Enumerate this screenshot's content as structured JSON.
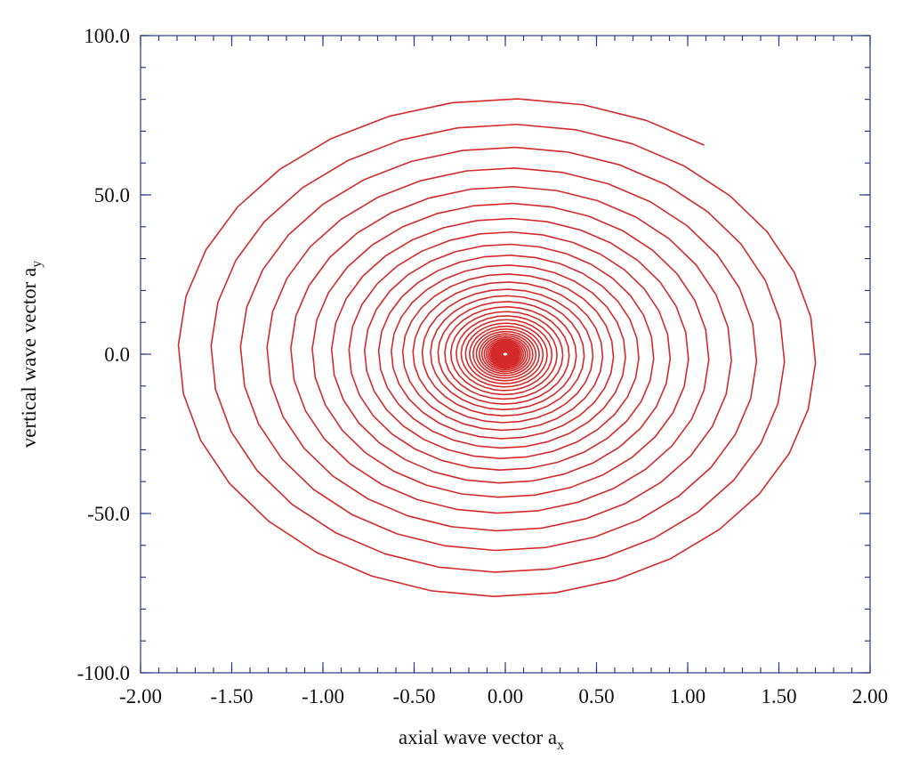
{
  "chart_data": {
    "type": "line",
    "title": "",
    "xlabel": "axial wave vector a",
    "xlabel_sub": "x",
    "ylabel": "vertical wave vector a",
    "ylabel_sub": "y",
    "xlim": [
      -2.0,
      2.0
    ],
    "ylim": [
      -100.0,
      100.0
    ],
    "x_ticks": [
      -2.0,
      -1.5,
      -1.0,
      -0.5,
      0.0,
      0.5,
      1.0,
      1.5,
      2.0
    ],
    "x_tick_labels": [
      "-2.00",
      "-1.50",
      "-1.00",
      "-0.50",
      "0.00",
      "0.50",
      "1.00",
      "1.50",
      "2.00"
    ],
    "x_minor_step": 0.1,
    "y_ticks": [
      -100.0,
      -50.0,
      0.0,
      50.0,
      100.0
    ],
    "y_tick_labels": [
      "-100.0",
      "-50.0",
      "0.0",
      "50.0",
      "100.0"
    ],
    "y_minor_step": 10.0,
    "grid": false,
    "series": [
      {
        "color": "#d42a2a",
        "curve": "spiral",
        "turns": 46,
        "points_per_turn": 32,
        "outer_start": {
          "x": 1.13,
          "y": 68.0
        },
        "outer_x_amplitude": 1.86,
        "outer_y_amplitude": 81.0,
        "center": {
          "x": 0.0,
          "y": 0.0
        },
        "decay_per_turn": 0.9
      }
    ]
  }
}
